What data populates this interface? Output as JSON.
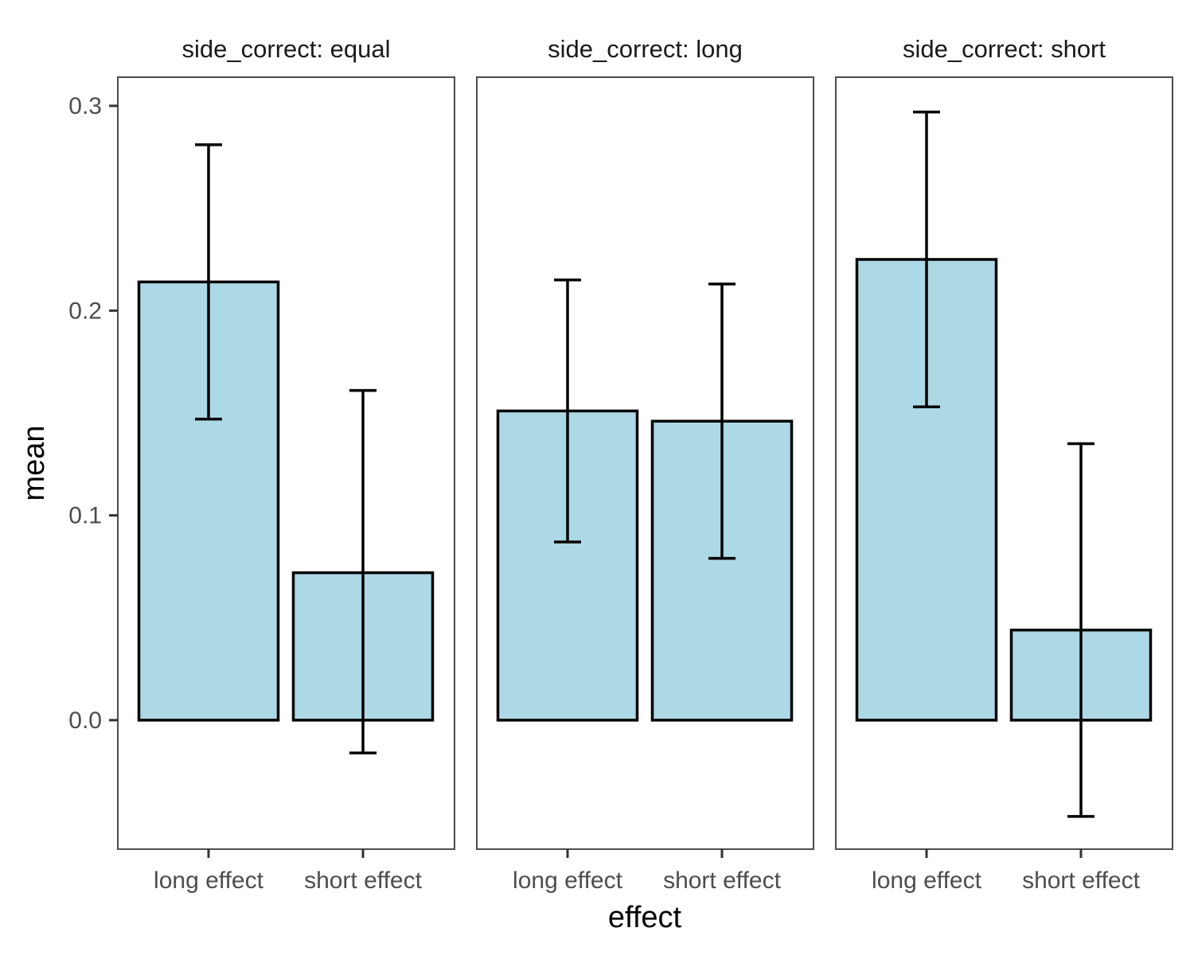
{
  "chart_data": {
    "type": "bar",
    "facet_variable": "side_correct",
    "facets": [
      {
        "label": "side_correct: equal",
        "categories": [
          "long effect",
          "short effect"
        ],
        "values": [
          0.214,
          0.072
        ],
        "error_low": [
          0.147,
          -0.016
        ],
        "error_high": [
          0.281,
          0.161
        ]
      },
      {
        "label": "side_correct: long",
        "categories": [
          "long effect",
          "short effect"
        ],
        "values": [
          0.151,
          0.146
        ],
        "error_low": [
          0.087,
          0.079
        ],
        "error_high": [
          0.215,
          0.213
        ]
      },
      {
        "label": "side_correct: short",
        "categories": [
          "long effect",
          "short effect"
        ],
        "values": [
          0.225,
          0.044
        ],
        "error_low": [
          0.153,
          -0.047
        ],
        "error_high": [
          0.297,
          0.135
        ]
      }
    ],
    "xlabel": "effect",
    "ylabel": "mean",
    "ylim": [
      -0.063,
      0.314
    ],
    "yticks": [
      0.0,
      0.1,
      0.2,
      0.3
    ],
    "ytick_labels": [
      "0.0",
      "0.1",
      "0.2",
      "0.3"
    ],
    "bar_color": "#add8e6",
    "grid": false
  }
}
